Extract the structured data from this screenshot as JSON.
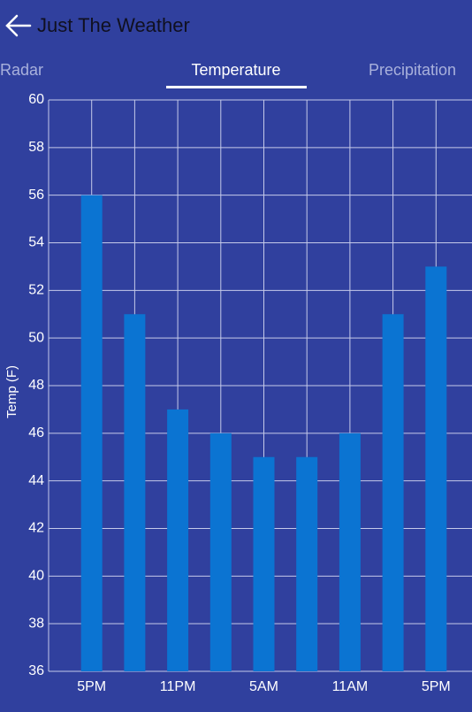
{
  "header": {
    "title": "Just The Weather"
  },
  "tabs": [
    "Radar",
    "Temperature",
    "Precipitation"
  ],
  "chart_data": {
    "type": "bar",
    "ylabel": "Temp (F)",
    "categories": [
      "5PM",
      null,
      "11PM",
      null,
      "5AM",
      null,
      "11AM",
      null,
      "5PM"
    ],
    "values": [
      56,
      51,
      47,
      46,
      45,
      45,
      46,
      51,
      53
    ],
    "color": "#0b74d2",
    "ylim": [
      36,
      60
    ],
    "yticks": [
      36,
      38,
      40,
      42,
      44,
      46,
      48,
      50,
      52,
      54,
      56,
      58,
      60
    ],
    "grid": true
  }
}
